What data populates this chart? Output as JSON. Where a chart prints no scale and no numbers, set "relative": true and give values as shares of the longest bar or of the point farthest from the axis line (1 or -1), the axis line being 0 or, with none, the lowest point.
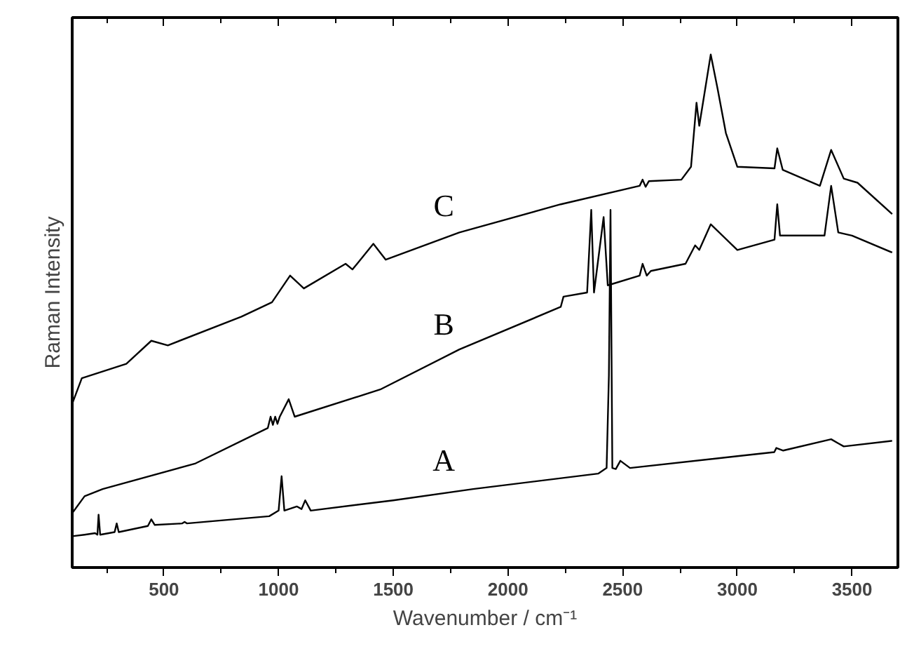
{
  "chart_data": {
    "type": "line",
    "relative": true,
    "xlabel": "Wavenumber / cm⁻¹",
    "ylabel": "Raman Intensity",
    "xlim": [
      100,
      3700
    ],
    "xticks": [
      500,
      1000,
      1500,
      2000,
      2500,
      3000,
      3500
    ],
    "grid": false,
    "marker": "none",
    "line_style": "solid",
    "series": [
      {
        "name": "C",
        "color": "#000000",
        "x": [
          100,
          142,
          336,
          445,
          517,
          838,
          971,
          1050,
          1110,
          1292,
          1322,
          1413,
          1467,
          1788,
          2230,
          2574,
          2587,
          2600,
          2614,
          2756,
          2798,
          2822,
          2834,
          2884,
          2914,
          2950,
          3000,
          3162,
          3174,
          3198,
          3360,
          3409,
          3464,
          3524,
          3675
        ],
        "values": [
          0.319,
          0.369,
          0.397,
          0.442,
          0.433,
          0.489,
          0.517,
          0.569,
          0.544,
          0.592,
          0.581,
          0.631,
          0.6,
          0.653,
          0.708,
          0.744,
          0.756,
          0.742,
          0.753,
          0.756,
          0.781,
          0.906,
          0.861,
          1.0,
          0.933,
          0.847,
          0.781,
          0.778,
          0.817,
          0.775,
          0.744,
          0.814,
          0.758,
          0.75,
          0.689
        ]
      },
      {
        "name": "B",
        "color": "#000000",
        "x": [
          100,
          154,
          233,
          638,
          953,
          965,
          975,
          985,
          995,
          1005,
          1044,
          1070,
          1443,
          1788,
          2230,
          2242,
          2345,
          2363,
          2375,
          2417,
          2435,
          2574,
          2587,
          2605,
          2623,
          2774,
          2816,
          2834,
          2884,
          3000,
          3162,
          3174,
          3186,
          3380,
          3409,
          3440,
          3500,
          3675
        ],
        "values": [
          0.106,
          0.139,
          0.153,
          0.203,
          0.272,
          0.294,
          0.278,
          0.294,
          0.28,
          0.294,
          0.328,
          0.294,
          0.347,
          0.425,
          0.508,
          0.528,
          0.536,
          0.697,
          0.536,
          0.683,
          0.55,
          0.569,
          0.592,
          0.569,
          0.578,
          0.592,
          0.628,
          0.619,
          0.669,
          0.619,
          0.639,
          0.708,
          0.647,
          0.647,
          0.744,
          0.653,
          0.647,
          0.614
        ]
      },
      {
        "name": "A",
        "color": "#000000",
        "x": [
          100,
          154,
          200,
          210,
          215,
          222,
          285,
          294,
          303,
          430,
          445,
          460,
          580,
          590,
          600,
          959,
          1000,
          1013,
          1025,
          1080,
          1100,
          1116,
          1140,
          1500,
          1848,
          2393,
          2430,
          2440,
          2447,
          2455,
          2470,
          2490,
          2532,
          3000,
          3161,
          3170,
          3200,
          3409,
          3440,
          3464,
          3675
        ],
        "values": [
          0.061,
          0.064,
          0.067,
          0.064,
          0.103,
          0.064,
          0.069,
          0.086,
          0.069,
          0.081,
          0.094,
          0.083,
          0.086,
          0.089,
          0.086,
          0.1,
          0.111,
          0.178,
          0.111,
          0.119,
          0.114,
          0.131,
          0.111,
          0.131,
          0.153,
          0.183,
          0.194,
          0.375,
          0.697,
          0.194,
          0.192,
          0.208,
          0.194,
          0.217,
          0.225,
          0.233,
          0.228,
          0.25,
          0.242,
          0.236,
          0.247
        ]
      }
    ]
  }
}
